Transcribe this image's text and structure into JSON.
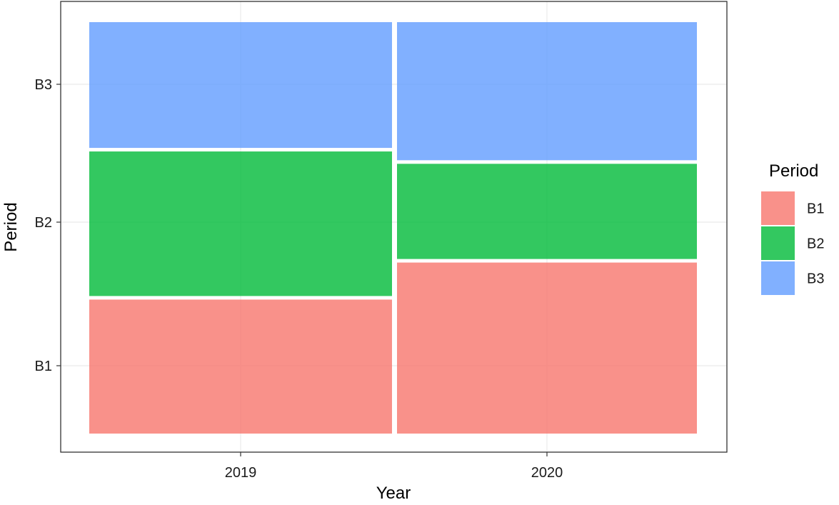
{
  "chart_data": {
    "type": "mosaic",
    "xlabel": "Year",
    "ylabel": "Period",
    "categories": [
      "2019",
      "2020"
    ],
    "y_ticks": [
      "B1",
      "B2",
      "B3"
    ],
    "series": [
      {
        "name": "B1",
        "color": "#F8766D",
        "values": [
          0.33,
          0.42
        ]
      },
      {
        "name": "B2",
        "color": "#00BA38",
        "values": [
          0.36,
          0.24
        ]
      },
      {
        "name": "B3",
        "color": "#619CFF",
        "values": [
          0.31,
          0.34
        ]
      }
    ],
    "legend": {
      "title": "Period",
      "entries": [
        "B1",
        "B2",
        "B3"
      ],
      "placement": "right"
    },
    "grid": true
  }
}
